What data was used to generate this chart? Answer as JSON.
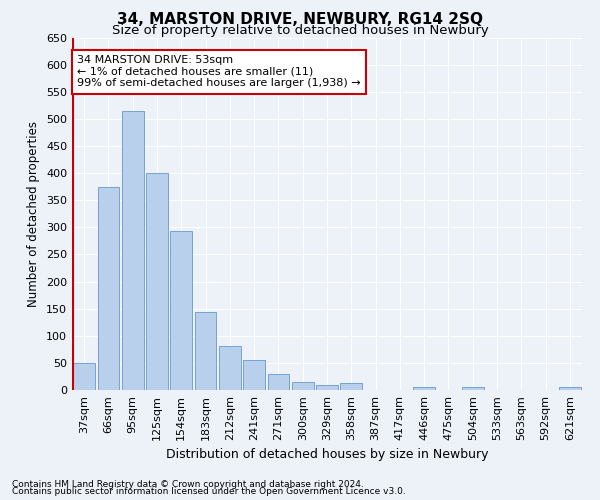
{
  "title": "34, MARSTON DRIVE, NEWBURY, RG14 2SQ",
  "subtitle": "Size of property relative to detached houses in Newbury",
  "xlabel": "Distribution of detached houses by size in Newbury",
  "ylabel": "Number of detached properties",
  "categories": [
    "37sqm",
    "66sqm",
    "95sqm",
    "125sqm",
    "154sqm",
    "183sqm",
    "212sqm",
    "241sqm",
    "271sqm",
    "300sqm",
    "329sqm",
    "358sqm",
    "387sqm",
    "417sqm",
    "446sqm",
    "475sqm",
    "504sqm",
    "533sqm",
    "563sqm",
    "592sqm",
    "621sqm"
  ],
  "values": [
    50,
    375,
    515,
    400,
    293,
    143,
    82,
    55,
    30,
    14,
    10,
    12,
    0,
    0,
    5,
    0,
    5,
    0,
    0,
    0,
    5
  ],
  "bar_color": "#b8d0eb",
  "bar_edge_color": "#6699cc",
  "highlight_color": "#cc0000",
  "ylim": [
    0,
    650
  ],
  "yticks": [
    0,
    50,
    100,
    150,
    200,
    250,
    300,
    350,
    400,
    450,
    500,
    550,
    600,
    650
  ],
  "annotation_text_line1": "34 MARSTON DRIVE: 53sqm",
  "annotation_text_line2": "← 1% of detached houses are smaller (11)",
  "annotation_text_line3": "99% of semi-detached houses are larger (1,938) →",
  "annotation_box_color": "#ffffff",
  "annotation_box_edgecolor": "#cc0000",
  "footer1": "Contains HM Land Registry data © Crown copyright and database right 2024.",
  "footer2": "Contains public sector information licensed under the Open Government Licence v3.0.",
  "background_color": "#edf2f9",
  "grid_color": "#ffffff",
  "title_fontsize": 11,
  "subtitle_fontsize": 9.5,
  "ylabel_fontsize": 8.5,
  "xlabel_fontsize": 9,
  "tick_fontsize": 8,
  "annotation_fontsize": 8,
  "footer_fontsize": 6.5
}
